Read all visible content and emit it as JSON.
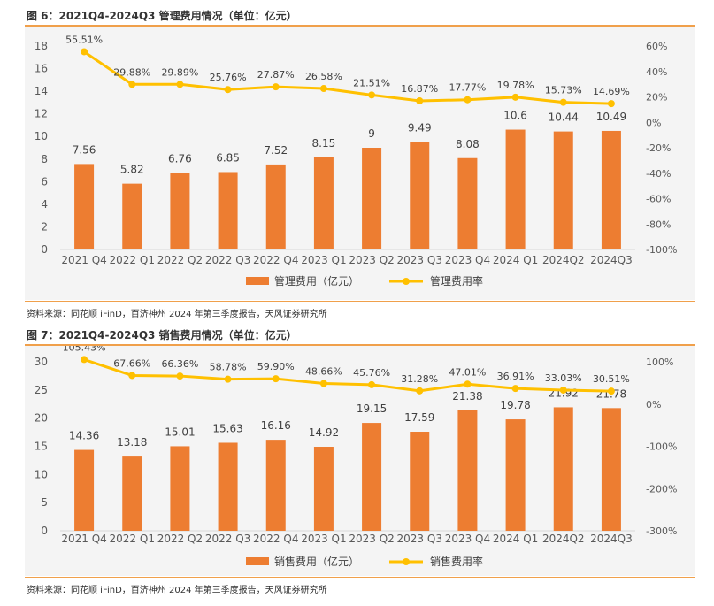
{
  "figures": [
    {
      "title": "图 6：2021Q4-2024Q3 管理费用情况（单位：亿元）",
      "source": "资料来源：同花顺 iFinD，百济神州 2024 年第三季度报告，天风证券研究所"
    },
    {
      "title": "图 7：2021Q4-2024Q3 销售费用情况（单位：亿元）",
      "source": "资料来源：同花顺 iFinD，百济神州 2024 年第三季度报告，天风证券研究所"
    }
  ],
  "colors": {
    "bar": "#ed7d31",
    "line": "#ffc000",
    "rule": "#f0a04b",
    "text": "#595959"
  },
  "chart_data": [
    {
      "type": "bar",
      "categories": [
        "2021 Q4",
        "2022 Q1",
        "2022 Q2",
        "2022 Q3",
        "2022 Q4",
        "2023 Q1",
        "2023 Q2",
        "2023 Q3",
        "2023 Q4",
        "2024 Q1",
        "2024Q2",
        "2024Q3"
      ],
      "series": [
        {
          "name": "管理费用（亿元）",
          "type": "bar",
          "axis": "left",
          "values": [
            7.56,
            5.82,
            6.76,
            6.85,
            7.52,
            8.15,
            9,
            9.49,
            8.08,
            10.6,
            10.44,
            10.49
          ],
          "labels": [
            "7.56",
            "5.82",
            "6.76",
            "6.85",
            "7.52",
            "8.15",
            "9",
            "9.49",
            "8.08",
            "10.6",
            "10.44",
            "10.49"
          ]
        },
        {
          "name": "管理费用率",
          "type": "line",
          "axis": "right",
          "values": [
            55.51,
            29.88,
            29.89,
            25.76,
            27.87,
            26.58,
            21.51,
            16.87,
            17.77,
            19.78,
            15.73,
            14.69
          ],
          "labels": [
            "55.51%",
            "29.88%",
            "29.89%",
            "25.76%",
            "27.87%",
            "26.58%",
            "21.51%",
            "16.87%",
            "17.77%",
            "19.78%",
            "15.73%",
            "14.69%"
          ]
        }
      ],
      "ylim": [
        0,
        18
      ],
      "yticks": [
        "0",
        "2",
        "4",
        "6",
        "8",
        "10",
        "12",
        "14",
        "16",
        "18"
      ],
      "y2lim": [
        -100,
        60
      ],
      "y2ticks": [
        "-100%",
        "-80%",
        "-60%",
        "-40%",
        "-20%",
        "0%",
        "20%",
        "40%",
        "60%"
      ],
      "grid": false,
      "legend": "bottom"
    },
    {
      "type": "bar",
      "categories": [
        "2021 Q4",
        "2022 Q1",
        "2022 Q2",
        "2022 Q3",
        "2022 Q4",
        "2023 Q1",
        "2023 Q2",
        "2023 Q3",
        "2023 Q4",
        "2024 Q1",
        "2024Q2",
        "2024Q3"
      ],
      "series": [
        {
          "name": "销售费用（亿元）",
          "type": "bar",
          "axis": "left",
          "values": [
            14.36,
            13.18,
            15.01,
            15.63,
            16.16,
            14.92,
            19.15,
            17.59,
            21.38,
            19.78,
            21.92,
            21.78
          ],
          "labels": [
            "14.36",
            "13.18",
            "15.01",
            "15.63",
            "16.16",
            "14.92",
            "19.15",
            "17.59",
            "21.38",
            "19.78",
            "21.92",
            "21.78"
          ]
        },
        {
          "name": "销售费用率",
          "type": "line",
          "axis": "right",
          "values": [
            105.43,
            67.66,
            66.36,
            58.78,
            59.9,
            48.66,
            45.76,
            31.28,
            47.01,
            36.91,
            33.03,
            30.51
          ],
          "labels": [
            "105.43%",
            "67.66%",
            "66.36%",
            "58.78%",
            "59.90%",
            "48.66%",
            "45.76%",
            "31.28%",
            "47.01%",
            "36.91%",
            "33.03%",
            "30.51%"
          ]
        }
      ],
      "ylim": [
        0,
        30
      ],
      "yticks": [
        "0",
        "5",
        "10",
        "15",
        "20",
        "25",
        "30"
      ],
      "y2lim": [
        -300,
        100
      ],
      "y2ticks": [
        "-300%",
        "-200%",
        "-100%",
        "0%",
        "100%"
      ],
      "grid": false,
      "legend": "bottom"
    }
  ]
}
